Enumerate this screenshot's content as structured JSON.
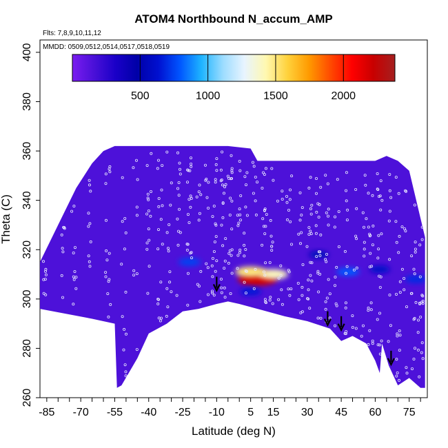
{
  "chart_data": {
    "type": "heatmap",
    "title": "ATOM4 Northbound N_accum_AMP",
    "flights_note": "Flts: 7,8,9,10,11,12",
    "dates_note": "MMDD: 0509,0512,0514,0517,0518,0519",
    "xlabel": "Latitude (deg N)",
    "ylabel": "Theta (C)",
    "xlim": [
      -88,
      83
    ],
    "ylim": [
      260,
      405
    ],
    "xticks": [
      -85,
      -80,
      -75,
      -70,
      -65,
      -60,
      -55,
      -50,
      -45,
      -40,
      -35,
      -30,
      -25,
      -20,
      -15,
      -10,
      -5,
      0,
      5,
      10,
      15,
      20,
      25,
      30,
      35,
      40,
      45,
      50,
      55,
      60,
      65,
      70,
      75,
      80
    ],
    "xtick_labels": [
      {
        "value": -85,
        "label": "-85"
      },
      {
        "value": -70,
        "label": "-70"
      },
      {
        "value": -55,
        "label": "-55"
      },
      {
        "value": -40,
        "label": "-40"
      },
      {
        "value": -25,
        "label": "-25"
      },
      {
        "value": -10,
        "label": "-10"
      },
      {
        "value": 5,
        "label": "5"
      },
      {
        "value": 15,
        "label": "15"
      },
      {
        "value": 30,
        "label": "30"
      },
      {
        "value": 45,
        "label": "45"
      },
      {
        "value": 60,
        "label": "60"
      },
      {
        "value": 75,
        "label": "75"
      }
    ],
    "yticks": [
      260,
      280,
      300,
      320,
      340,
      360,
      380,
      400
    ],
    "ytick_labels": [
      "260",
      "280",
      "300",
      "320",
      "340",
      "360",
      "380",
      "400"
    ],
    "colorbar": {
      "range": [
        0,
        2380
      ],
      "ticks": [
        500,
        1000,
        1500,
        2000
      ],
      "tick_labels": [
        "500",
        "1000",
        "1500",
        "2000"
      ],
      "colors": [
        "#7a1cf0",
        "#4a10d8",
        "#1a00c8",
        "#0000a8",
        "#0010d0",
        "#0055ff",
        "#1eb4ff",
        "#9cdcff",
        "#e8f4ff",
        "#fff8b0",
        "#ffd23c",
        "#ff9a00",
        "#ff4a00",
        "#ff0000",
        "#c80000",
        "#a52020"
      ]
    },
    "field": {
      "background_value": 150,
      "hotspots": [
        {
          "lat": 8,
          "theta": 308,
          "value": 2200
        },
        {
          "lat": 15,
          "theta": 310,
          "value": 1400
        },
        {
          "lat": 5,
          "theta": 311,
          "value": 1500
        },
        {
          "lat": -22,
          "theta": 315,
          "value": 750
        },
        {
          "lat": 5,
          "theta": 303,
          "value": 650
        },
        {
          "lat": 35,
          "theta": 318,
          "value": 550
        },
        {
          "lat": 48,
          "theta": 311,
          "value": 800
        },
        {
          "lat": 62,
          "theta": 312,
          "value": 600
        },
        {
          "lat": 78,
          "theta": 308,
          "value": 700
        }
      ],
      "lower_boundary": [
        [
          -88,
          296
        ],
        [
          -65,
          292
        ],
        [
          -55,
          290
        ],
        [
          -54,
          264
        ],
        [
          -52,
          265
        ],
        [
          -45,
          276
        ],
        [
          -40,
          286
        ],
        [
          -32,
          290
        ],
        [
          -25,
          295
        ],
        [
          -18,
          296
        ],
        [
          -10,
          298
        ],
        [
          -5,
          299
        ],
        [
          0,
          298
        ],
        [
          8,
          296
        ],
        [
          20,
          293
        ],
        [
          30,
          291
        ],
        [
          40,
          288
        ],
        [
          45,
          283
        ],
        [
          50,
          285
        ],
        [
          56,
          282
        ],
        [
          60,
          275
        ],
        [
          62,
          270
        ],
        [
          63,
          282
        ],
        [
          66,
          273
        ],
        [
          70,
          265
        ],
        [
          75,
          268
        ],
        [
          80,
          264
        ],
        [
          82,
          264
        ]
      ],
      "upper_boundary": [
        [
          -88,
          315
        ],
        [
          -80,
          330
        ],
        [
          -72,
          345
        ],
        [
          -65,
          355
        ],
        [
          -60,
          360
        ],
        [
          -55,
          362
        ],
        [
          -5,
          362
        ],
        [
          5,
          361
        ],
        [
          8,
          356
        ],
        [
          60,
          356
        ],
        [
          65,
          358
        ],
        [
          70,
          356
        ],
        [
          75,
          352
        ],
        [
          82,
          325
        ]
      ]
    },
    "arrows": [
      {
        "lat": -10,
        "theta": 304
      },
      {
        "lat": 39,
        "theta": 290
      },
      {
        "lat": 45,
        "theta": 288
      },
      {
        "lat": 67,
        "theta": 274
      }
    ]
  }
}
